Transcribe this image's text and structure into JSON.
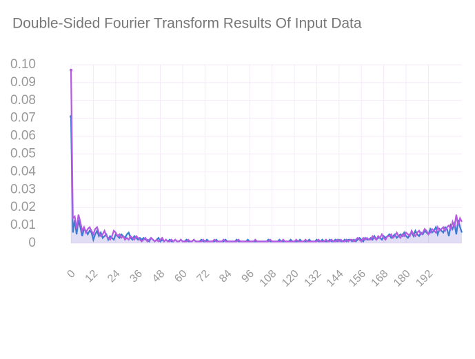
{
  "chart_data": {
    "type": "line",
    "title": "Double-Sided Fourier Transform Results Of Input Data",
    "xlim": [
      0,
      210
    ],
    "xticks": [
      0,
      12,
      24,
      36,
      48,
      60,
      72,
      84,
      96,
      108,
      120,
      132,
      144,
      156,
      168,
      180,
      192
    ],
    "ylim": [
      0,
      0.1
    ],
    "yticks": [
      0,
      0.01,
      0.02,
      0.03,
      0.04,
      0.05,
      0.06,
      0.07,
      0.08,
      0.09,
      {
        "value": 0.1,
        "label": "0.10"
      }
    ],
    "grid": true,
    "series": [
      {
        "color": "#2f7fd0",
        "values": [
          0.071,
          0.006,
          0.013,
          0.005,
          0.013,
          0.009,
          0.004,
          0.008,
          0.007,
          0.005,
          0.007,
          0.006,
          0.002,
          0.005,
          0.007,
          0.004,
          0.006,
          0.003,
          0.004,
          0.005,
          0.002,
          0.004,
          0.003,
          0.002,
          0.005,
          0.004,
          0.003,
          0.005,
          0.004,
          0.003,
          0.005,
          0.006,
          0.003,
          0.002,
          0.004,
          0.003,
          0.002,
          0.003,
          0.002,
          0.003,
          0.002,
          0.002,
          0.001,
          0.003,
          0.002,
          0.001,
          0.002,
          0.003,
          0.001,
          0.002,
          0.001,
          0.002,
          0.001,
          0.002,
          0.001,
          0.001,
          0.002,
          0.001,
          0.001,
          0.002,
          0.001,
          0.001,
          0.002,
          0.001,
          0.001,
          0.001,
          0.002,
          0.001,
          0.001,
          0.001,
          0.002,
          0.001,
          0.001,
          0.002,
          0.001,
          0.001,
          0.001,
          0.001,
          0.002,
          0.001,
          0.001,
          0.001,
          0.001,
          0.002,
          0.001,
          0.001,
          0.001,
          0.001,
          0.001,
          0.002,
          0.001,
          0.001,
          0.001,
          0.001,
          0.001,
          0.002,
          0.001,
          0.001,
          0.001,
          0.001,
          0.001,
          0.001,
          0.001,
          0.001,
          0.001,
          0.001,
          0.002,
          0.001,
          0.001,
          0.001,
          0.001,
          0.001,
          0.002,
          0.001,
          0.001,
          0.001,
          0.001,
          0.001,
          0.002,
          0.001,
          0.001,
          0.001,
          0.001,
          0.002,
          0.001,
          0.001,
          0.001,
          0.001,
          0.002,
          0.001,
          0.001,
          0.001,
          0.002,
          0.001,
          0.001,
          0.002,
          0.001,
          0.001,
          0.001,
          0.002,
          0.001,
          0.001,
          0.002,
          0.001,
          0.002,
          0.001,
          0.001,
          0.002,
          0.001,
          0.002,
          0.002,
          0.001,
          0.002,
          0.001,
          0.002,
          0.003,
          0.002,
          0.001,
          0.003,
          0.002,
          0.002,
          0.003,
          0.002,
          0.004,
          0.002,
          0.003,
          0.003,
          0.002,
          0.004,
          0.003,
          0.004,
          0.005,
          0.003,
          0.004,
          0.005,
          0.003,
          0.004,
          0.005,
          0.004,
          0.006,
          0.004,
          0.003,
          0.005,
          0.006,
          0.004,
          0.007,
          0.005,
          0.004,
          0.006,
          0.005,
          0.007,
          0.006,
          0.005,
          0.008,
          0.006,
          0.007,
          0.009,
          0.005,
          0.008,
          0.007,
          0.006,
          0.009,
          0.008,
          0.004,
          0.01,
          0.008,
          0.011,
          0.005,
          0.013,
          0.009,
          0.006
        ]
      },
      {
        "color": "#b45be0",
        "values": [
          0.097,
          0.014,
          0.015,
          0.008,
          0.016,
          0.012,
          0.007,
          0.009,
          0.006,
          0.008,
          0.009,
          0.007,
          0.005,
          0.008,
          0.009,
          0.006,
          0.004,
          0.005,
          0.007,
          0.004,
          0.003,
          0.002,
          0.004,
          0.007,
          0.006,
          0.004,
          0.005,
          0.003,
          0.004,
          0.002,
          0.003,
          0.002,
          0.004,
          0.003,
          0.002,
          0.004,
          0.003,
          0.002,
          0.001,
          0.002,
          0.003,
          0.001,
          0.002,
          0.003,
          0.002,
          0.001,
          0.002,
          0.001,
          0.002,
          0.003,
          0.001,
          0.002,
          0.001,
          0.001,
          0.002,
          0.001,
          0.002,
          0.001,
          0.001,
          0.002,
          0.001,
          0.001,
          0.001,
          0.002,
          0.001,
          0.001,
          0.002,
          0.001,
          0.001,
          0.001,
          0.001,
          0.002,
          0.001,
          0.001,
          0.001,
          0.001,
          0.001,
          0.002,
          0.001,
          0.001,
          0.001,
          0.001,
          0.002,
          0.001,
          0.001,
          0.001,
          0.001,
          0.001,
          0.001,
          0.001,
          0.002,
          0.001,
          0.001,
          0.001,
          0.001,
          0.001,
          0.001,
          0.001,
          0.001,
          0.002,
          0.001,
          0.001,
          0.001,
          0.001,
          0.001,
          0.001,
          0.001,
          0.002,
          0.001,
          0.001,
          0.001,
          0.001,
          0.001,
          0.001,
          0.002,
          0.001,
          0.001,
          0.001,
          0.001,
          0.001,
          0.001,
          0.002,
          0.001,
          0.001,
          0.001,
          0.001,
          0.002,
          0.001,
          0.001,
          0.001,
          0.001,
          0.001,
          0.001,
          0.002,
          0.001,
          0.001,
          0.001,
          0.002,
          0.001,
          0.001,
          0.002,
          0.001,
          0.001,
          0.002,
          0.001,
          0.002,
          0.001,
          0.001,
          0.002,
          0.001,
          0.002,
          0.002,
          0.001,
          0.002,
          0.003,
          0.002,
          0.001,
          0.003,
          0.002,
          0.003,
          0.002,
          0.002,
          0.004,
          0.003,
          0.002,
          0.004,
          0.003,
          0.005,
          0.003,
          0.002,
          0.004,
          0.004,
          0.005,
          0.003,
          0.004,
          0.006,
          0.004,
          0.003,
          0.005,
          0.004,
          0.006,
          0.005,
          0.004,
          0.007,
          0.005,
          0.004,
          0.006,
          0.007,
          0.005,
          0.006,
          0.008,
          0.007,
          0.005,
          0.006,
          0.008,
          0.007,
          0.006,
          0.009,
          0.007,
          0.008,
          0.009,
          0.007,
          0.009,
          0.01,
          0.008,
          0.012,
          0.009,
          0.016,
          0.01,
          0.014,
          0.012
        ]
      }
    ]
  }
}
